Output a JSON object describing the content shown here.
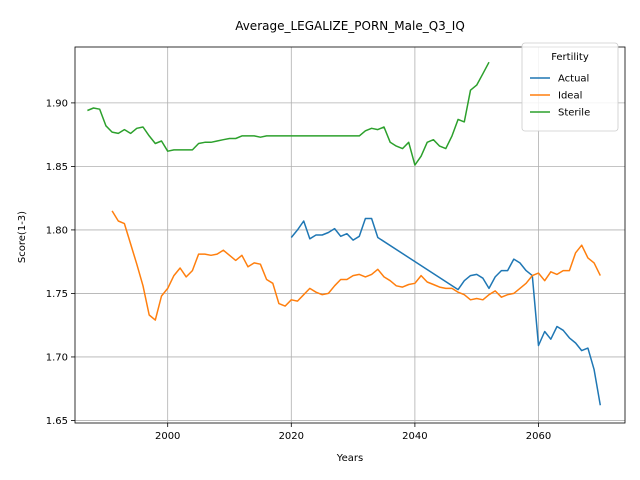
{
  "chart_data": {
    "type": "line",
    "title": "Average_LEGALIZE_PORN_Male_Q3_IQ",
    "xlabel": "Years",
    "ylabel": "Score(1-3)",
    "xlim": [
      1985,
      2074
    ],
    "ylim": [
      1.648,
      1.944
    ],
    "xticks": [
      2000,
      2020,
      2040,
      2060
    ],
    "yticks": [
      1.65,
      1.7,
      1.75,
      1.8,
      1.85,
      1.9
    ],
    "ytick_labels": [
      "1.65",
      "1.70",
      "1.75",
      "1.80",
      "1.85",
      "1.90"
    ],
    "grid": true,
    "legend": {
      "title": "Fertility",
      "placement": "upper-right"
    },
    "series": [
      {
        "name": "Actual",
        "color": "#1f77b4",
        "x": [
          2020,
          2021,
          2022,
          2023,
          2024,
          2025,
          2026,
          2027,
          2028,
          2029,
          2030,
          2031,
          2032,
          2033,
          2034,
          2047,
          2048,
          2049,
          2050,
          2051,
          2052,
          2053,
          2054,
          2055,
          2056,
          2057,
          2058,
          2059,
          2060,
          2061,
          2062,
          2063,
          2064,
          2065,
          2066,
          2067,
          2068,
          2069,
          2070
        ],
        "y": [
          1.794,
          1.8,
          1.807,
          1.793,
          1.796,
          1.796,
          1.798,
          1.801,
          1.795,
          1.797,
          1.792,
          1.795,
          1.809,
          1.809,
          1.794,
          1.753,
          1.76,
          1.764,
          1.765,
          1.762,
          1.754,
          1.763,
          1.768,
          1.768,
          1.777,
          1.774,
          1.768,
          1.764,
          1.709,
          1.72,
          1.714,
          1.724,
          1.721,
          1.715,
          1.711,
          1.705,
          1.707,
          1.69,
          1.662
        ]
      },
      {
        "name": "Ideal",
        "color": "#ff7f0e",
        "x": [
          1991,
          1992,
          1993,
          1994,
          1995,
          1996,
          1997,
          1998,
          1999,
          2000,
          2001,
          2002,
          2003,
          2004,
          2005,
          2006,
          2007,
          2008,
          2009,
          2010,
          2011,
          2012,
          2013,
          2014,
          2015,
          2016,
          2017,
          2018,
          2019,
          2020,
          2021,
          2022,
          2023,
          2024,
          2025,
          2026,
          2027,
          2028,
          2029,
          2030,
          2031,
          2032,
          2033,
          2034,
          2035,
          2036,
          2037,
          2038,
          2039,
          2040,
          2041,
          2042,
          2043,
          2044,
          2045,
          2046,
          2047,
          2048,
          2049,
          2050,
          2051,
          2052,
          2053,
          2054,
          2055,
          2056,
          2057,
          2058,
          2059,
          2060,
          2061,
          2062,
          2063,
          2064,
          2065,
          2066,
          2067,
          2068,
          2069,
          2070
        ],
        "y": [
          1.815,
          1.807,
          1.805,
          1.789,
          1.773,
          1.756,
          1.733,
          1.729,
          1.748,
          1.754,
          1.764,
          1.77,
          1.763,
          1.768,
          1.781,
          1.781,
          1.78,
          1.781,
          1.784,
          1.78,
          1.776,
          1.78,
          1.771,
          1.774,
          1.773,
          1.761,
          1.758,
          1.742,
          1.74,
          1.745,
          1.744,
          1.749,
          1.754,
          1.751,
          1.749,
          1.75,
          1.756,
          1.761,
          1.761,
          1.764,
          1.765,
          1.763,
          1.765,
          1.769,
          1.763,
          1.76,
          1.756,
          1.755,
          1.757,
          1.758,
          1.764,
          1.759,
          1.757,
          1.755,
          1.754,
          1.754,
          1.751,
          1.749,
          1.745,
          1.746,
          1.745,
          1.749,
          1.752,
          1.747,
          1.749,
          1.75,
          1.754,
          1.758,
          1.764,
          1.766,
          1.76,
          1.767,
          1.765,
          1.768,
          1.768,
          1.782,
          1.788,
          1.778,
          1.774,
          1.764
        ]
      },
      {
        "name": "Sterile",
        "color": "#2ca02c",
        "x": [
          1987,
          1988,
          1989,
          1990,
          1991,
          1992,
          1993,
          1994,
          1995,
          1996,
          1997,
          1998,
          1999,
          2000,
          2001,
          2002,
          2003,
          2004,
          2005,
          2006,
          2007,
          2008,
          2009,
          2010,
          2011,
          2012,
          2013,
          2014,
          2015,
          2016,
          2017,
          2018,
          2019,
          2020,
          2021,
          2022,
          2023,
          2024,
          2025,
          2026,
          2027,
          2028,
          2029,
          2030,
          2031,
          2032,
          2033,
          2034,
          2035,
          2036,
          2037,
          2038,
          2039,
          2040,
          2041,
          2042,
          2043,
          2044,
          2045,
          2046,
          2047,
          2048,
          2049,
          2050,
          2051,
          2052
        ],
        "y": [
          1.894,
          1.896,
          1.895,
          1.882,
          1.877,
          1.876,
          1.879,
          1.876,
          1.88,
          1.881,
          1.874,
          1.868,
          1.87,
          1.862,
          1.863,
          1.863,
          1.863,
          1.863,
          1.868,
          1.869,
          1.869,
          1.87,
          1.871,
          1.872,
          1.872,
          1.874,
          1.874,
          1.874,
          1.873,
          1.874,
          1.874,
          1.874,
          1.874,
          1.874,
          1.874,
          1.874,
          1.874,
          1.874,
          1.874,
          1.874,
          1.874,
          1.874,
          1.874,
          1.874,
          1.874,
          1.878,
          1.88,
          1.879,
          1.881,
          1.869,
          1.866,
          1.864,
          1.869,
          1.851,
          1.858,
          1.869,
          1.871,
          1.866,
          1.864,
          1.874,
          1.887,
          1.885,
          1.91,
          1.914,
          1.923,
          1.932
        ]
      }
    ]
  }
}
